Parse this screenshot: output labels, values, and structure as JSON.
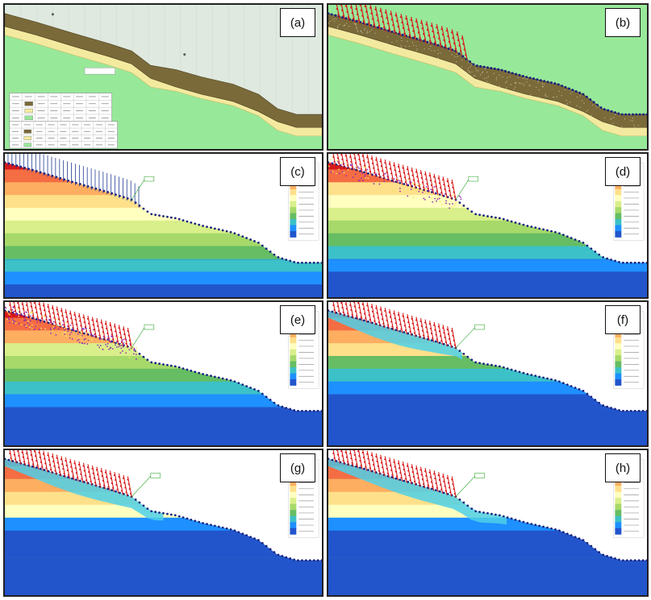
{
  "figure": {
    "panels": [
      {
        "id": "a",
        "label": "(a)",
        "kind": "geology"
      },
      {
        "id": "b",
        "label": "(b)",
        "kind": "mesh"
      },
      {
        "id": "c",
        "label": "(c)",
        "kind": "stress",
        "stage": 0
      },
      {
        "id": "d",
        "label": "(d)",
        "kind": "stress",
        "stage": 1
      },
      {
        "id": "e",
        "label": "(e)",
        "kind": "stress",
        "stage": 2
      },
      {
        "id": "f",
        "label": "(f)",
        "kind": "stress",
        "stage": 3
      },
      {
        "id": "g",
        "label": "(g)",
        "kind": "stress",
        "stage": 4
      },
      {
        "id": "h",
        "label": "(h)",
        "kind": "stress",
        "stage": 5
      }
    ],
    "colors": {
      "bedrock": "#98e89a",
      "colluvium": "#7a6a3a",
      "weathered_layer": "#f3eaa0",
      "mesh_nodes": "#1a237e",
      "bolts": "#d81b1b",
      "panel_border": "#222222"
    },
    "stress_palette": [
      "#d7191c",
      "#f46d43",
      "#fdae61",
      "#fee08b",
      "#ffffbf",
      "#d9ef8b",
      "#a6d96a",
      "#66bd63",
      "#3cc1c8",
      "#1e90ff",
      "#2255cc"
    ]
  }
}
